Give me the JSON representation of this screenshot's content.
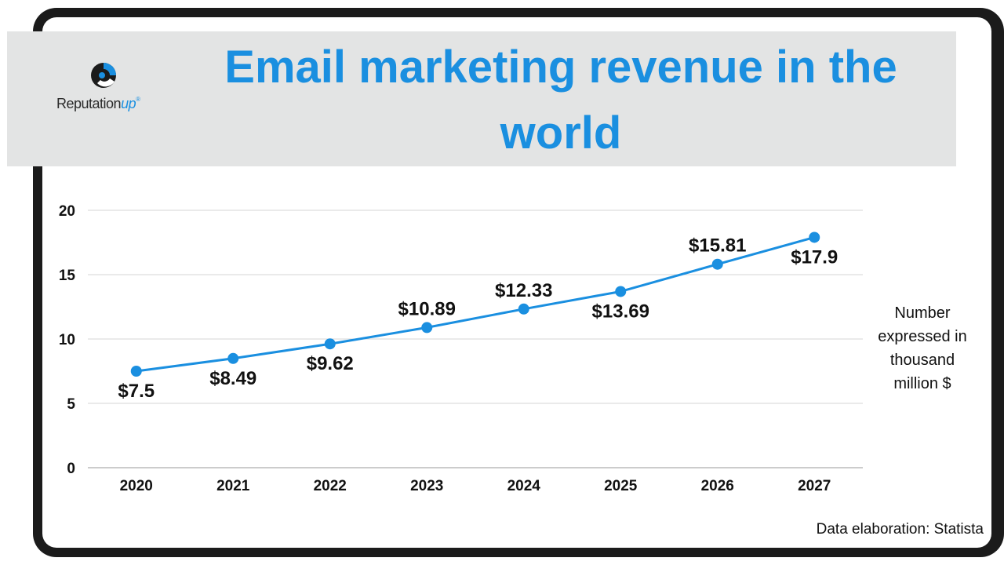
{
  "header": {
    "title": "Email marketing revenue in the world",
    "logo_text": "Reputation",
    "logo_up": "up",
    "logo_reg": "®"
  },
  "unit_note": "Number expressed in thousand million $",
  "source": "Data elaboration: Statista",
  "colors": {
    "accent": "#1a8fe0",
    "line": "#1a8fe0",
    "frame": "#1b1b1b",
    "band": "#e3e4e4"
  },
  "chart_data": {
    "type": "line",
    "title": "Email marketing revenue in the world",
    "categories": [
      "2020",
      "2021",
      "2022",
      "2023",
      "2024",
      "2025",
      "2026",
      "2027"
    ],
    "values": [
      7.5,
      8.49,
      9.62,
      10.89,
      12.33,
      13.69,
      15.81,
      17.9
    ],
    "data_labels": [
      "$7.5",
      "$8.49",
      "$9.62",
      "$10.89",
      "$12.33",
      "$13.69",
      "$15.81",
      "$17.9"
    ],
    "label_position": [
      "below",
      "below",
      "below",
      "above",
      "above",
      "below",
      "above",
      "below"
    ],
    "yticks": [
      "0",
      "5",
      "10",
      "15",
      "20"
    ],
    "ylim": [
      0,
      20
    ],
    "grid": true,
    "legend": "none"
  }
}
